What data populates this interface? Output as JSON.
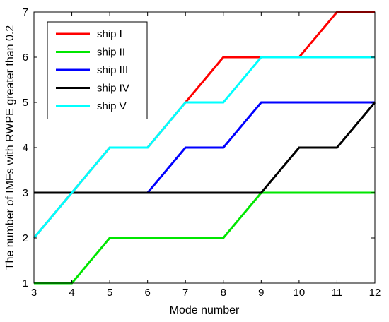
{
  "chart_data": {
    "type": "line",
    "xlabel": "Mode number",
    "ylabel": "The number of IMFs with RWPE greater than 0.2",
    "xlim": [
      3,
      12
    ],
    "ylim": [
      1,
      7
    ],
    "xticks": [
      "3",
      "4",
      "5",
      "6",
      "7",
      "8",
      "9",
      "10",
      "11",
      "12"
    ],
    "yticks": [
      "1",
      "2",
      "3",
      "4",
      "5",
      "6",
      "7"
    ],
    "grid": false,
    "legend_position": "top-left",
    "x": [
      3,
      4,
      5,
      6,
      7,
      8,
      9,
      10,
      11,
      12
    ],
    "series": [
      {
        "name": "ship I",
        "color": "#ff0000",
        "values": [
          2,
          3,
          4,
          4,
          5,
          6,
          6,
          6,
          7,
          7
        ]
      },
      {
        "name": "ship II",
        "color": "#00e600",
        "values": [
          1,
          1,
          2,
          2,
          2,
          2,
          3,
          3,
          3,
          3
        ]
      },
      {
        "name": "ship III",
        "color": "#0000ff",
        "values": [
          3,
          3,
          3,
          3,
          4,
          4,
          5,
          5,
          5,
          5
        ]
      },
      {
        "name": "ship IV",
        "color": "#000000",
        "values": [
          3,
          3,
          3,
          3,
          3,
          3,
          3,
          4,
          4,
          5
        ]
      },
      {
        "name": "ship V",
        "color": "#00ffff",
        "values": [
          2,
          3,
          4,
          4,
          5,
          5,
          6,
          6,
          6,
          6
        ]
      }
    ]
  }
}
